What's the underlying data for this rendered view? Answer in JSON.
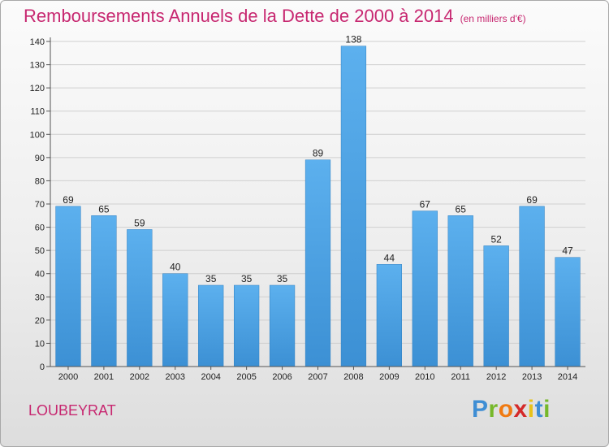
{
  "chart_data": {
    "type": "bar",
    "title": "Remboursements Annuels de la Dette de 2000 à 2014",
    "unit_note": "(en milliers d'€)",
    "categories": [
      "2000",
      "2001",
      "2002",
      "2003",
      "2004",
      "2005",
      "2006",
      "2007",
      "2008",
      "2009",
      "2010",
      "2011",
      "2012",
      "2013",
      "2014"
    ],
    "values": [
      69,
      65,
      59,
      40,
      35,
      35,
      35,
      89,
      138,
      44,
      67,
      65,
      52,
      69,
      47
    ],
    "ylim": [
      0,
      140
    ],
    "yticks": [
      0,
      10,
      20,
      30,
      40,
      50,
      60,
      70,
      80,
      90,
      100,
      110,
      120,
      130,
      140
    ],
    "grid": true,
    "bar_color": "#3c90d4",
    "data_labels": true
  },
  "location": "LOUBEYRAT",
  "brand": {
    "letters": [
      "P",
      "r",
      "o",
      "x",
      "i",
      "t",
      "i"
    ]
  },
  "colors": {
    "title": "#c72770",
    "bar": "#3c90d4"
  }
}
